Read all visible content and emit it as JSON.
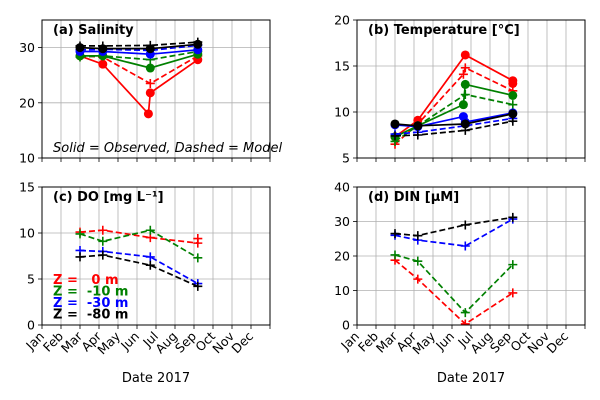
{
  "chart_data": [
    {
      "type": "line",
      "title": "(a) Salinity",
      "xlabel": "",
      "ylabel": "",
      "ylim": [
        10,
        35
      ],
      "yticks": [
        10,
        20,
        30
      ],
      "xlim": [
        0,
        12
      ],
      "grid": true,
      "annotation": "Solid = Observed, Dashed = Model",
      "series": [
        {
          "name": "0 m observed",
          "color": "#ff0000",
          "style": "solid",
          "marker": "circle",
          "x": [
            2.0,
            3.2,
            5.6,
            5.7,
            8.2
          ],
          "y": [
            28.5,
            27.0,
            18.0,
            21.8,
            27.8
          ]
        },
        {
          "name": "0 m model",
          "color": "#ff0000",
          "style": "dashed",
          "marker": "plus",
          "x": [
            2.0,
            3.2,
            5.7,
            8.2
          ],
          "y": [
            28.5,
            28.3,
            23.5,
            28.5
          ]
        },
        {
          "name": "-10 m observed",
          "color": "#008000",
          "style": "solid",
          "marker": "circle",
          "x": [
            2.0,
            3.2,
            5.7,
            8.2
          ],
          "y": [
            28.5,
            28.5,
            26.3,
            28.8
          ]
        },
        {
          "name": "-10 m model",
          "color": "#008000",
          "style": "dashed",
          "marker": "plus",
          "x": [
            2.0,
            3.2,
            5.7,
            8.2
          ],
          "y": [
            28.3,
            28.5,
            27.8,
            29.3
          ]
        },
        {
          "name": "-30 m observed",
          "color": "#0000ff",
          "style": "solid",
          "marker": "circle",
          "x": [
            2.0,
            3.2,
            5.7,
            8.2
          ],
          "y": [
            29.3,
            29.3,
            28.8,
            29.6
          ]
        },
        {
          "name": "-30 m model",
          "color": "#0000ff",
          "style": "dashed",
          "marker": "plus",
          "x": [
            2.0,
            3.2,
            5.7,
            8.2
          ],
          "y": [
            29.6,
            29.7,
            29.5,
            30.4
          ]
        },
        {
          "name": "-80 m observed",
          "color": "#000000",
          "style": "solid",
          "marker": "circle",
          "x": [
            2.0,
            3.2,
            5.7,
            8.2
          ],
          "y": [
            30.0,
            29.8,
            29.8,
            30.6
          ]
        },
        {
          "name": "-80 m model",
          "color": "#000000",
          "style": "dashed",
          "marker": "plus",
          "x": [
            2.0,
            3.2,
            5.7,
            8.2
          ],
          "y": [
            30.3,
            30.3,
            30.4,
            31.0
          ]
        }
      ]
    },
    {
      "type": "line",
      "title": "(b) Temperature [°C]",
      "xlabel": "",
      "ylabel": "",
      "ylim": [
        5,
        20
      ],
      "yticks": [
        5,
        10,
        15,
        20
      ],
      "xlim": [
        0,
        12
      ],
      "grid": true,
      "series": [
        {
          "name": "0 m observed",
          "color": "#ff0000",
          "style": "solid",
          "marker": "circle",
          "x": [
            2.0,
            3.2,
            5.7,
            8.2,
            8.2
          ],
          "y": [
            7.3,
            9.1,
            16.2,
            13.4,
            13.1
          ]
        },
        {
          "name": "0 m model",
          "color": "#ff0000",
          "style": "dashed",
          "marker": "plus",
          "x": [
            2.0,
            3.2,
            5.6,
            5.7,
            8.2
          ],
          "y": [
            6.5,
            8.7,
            14.1,
            14.8,
            12.3
          ]
        },
        {
          "name": "-10 m observed",
          "color": "#008000",
          "style": "solid",
          "marker": "circle",
          "x": [
            2.0,
            3.2,
            5.6,
            5.7,
            8.2
          ],
          "y": [
            7.3,
            8.5,
            10.8,
            13.0,
            11.8
          ]
        },
        {
          "name": "-10 m model",
          "color": "#008000",
          "style": "dashed",
          "marker": "plus",
          "x": [
            2.0,
            3.2,
            5.7,
            8.2
          ],
          "y": [
            6.8,
            8.5,
            11.9,
            10.8
          ]
        },
        {
          "name": "-30 m observed",
          "color": "#0000ff",
          "style": "solid",
          "marker": "circle",
          "x": [
            2.0,
            3.2,
            5.6,
            5.7,
            8.2
          ],
          "y": [
            8.6,
            8.4,
            9.5,
            8.9,
            9.9
          ]
        },
        {
          "name": "-30 m model",
          "color": "#0000ff",
          "style": "dashed",
          "marker": "plus",
          "x": [
            2.0,
            3.2,
            5.7,
            8.2
          ],
          "y": [
            7.6,
            7.8,
            8.5,
            9.3
          ]
        },
        {
          "name": "-80 m observed",
          "color": "#000000",
          "style": "solid",
          "marker": "circle",
          "x": [
            2.0,
            3.2,
            5.7,
            8.2
          ],
          "y": [
            8.7,
            8.5,
            8.7,
            9.8
          ]
        },
        {
          "name": "-80 m model",
          "color": "#000000",
          "style": "dashed",
          "marker": "plus",
          "x": [
            2.0,
            3.2,
            5.7,
            8.2
          ],
          "y": [
            7.4,
            7.5,
            8.0,
            9.0
          ]
        }
      ]
    },
    {
      "type": "line",
      "title": "(c) DO [mg L⁻¹]",
      "xlabel": "Date 2017",
      "ylabel": "",
      "ylim": [
        0,
        15
      ],
      "yticks": [
        0,
        5,
        10,
        15
      ],
      "xlim": [
        0,
        12
      ],
      "xticks": [
        "Jan",
        "Feb",
        "Mar",
        "Apr",
        "May",
        "Jun",
        "Jul",
        "Aug",
        "Sep",
        "Oct",
        "Nov",
        "Dec"
      ],
      "grid": true,
      "legend": {
        "placement": "bottom-left",
        "entries": [
          {
            "label": "Z =   0 m",
            "color": "#ff0000"
          },
          {
            "label": "Z =  -10 m",
            "color": "#008000"
          },
          {
            "label": "Z =  -30 m",
            "color": "#0000ff"
          },
          {
            "label": "Z =  -80 m",
            "color": "#000000"
          }
        ]
      },
      "series": [
        {
          "name": "0 m model",
          "color": "#ff0000",
          "style": "dashed",
          "marker": "plus",
          "x": [
            2.0,
            3.2,
            5.7,
            8.2,
            8.2
          ],
          "y": [
            10.1,
            10.3,
            9.5,
            8.9,
            9.4
          ]
        },
        {
          "name": "-10 m model",
          "color": "#008000",
          "style": "dashed",
          "marker": "plus",
          "x": [
            2.0,
            3.2,
            5.7,
            8.2
          ],
          "y": [
            9.9,
            9.1,
            10.3,
            7.3
          ]
        },
        {
          "name": "-30 m model",
          "color": "#0000ff",
          "style": "dashed",
          "marker": "plus",
          "x": [
            2.0,
            3.2,
            5.7,
            8.2
          ],
          "y": [
            8.1,
            8.0,
            7.4,
            4.5
          ]
        },
        {
          "name": "-80 m model",
          "color": "#000000",
          "style": "dashed",
          "marker": "plus",
          "x": [
            2.0,
            3.2,
            5.7,
            8.2
          ],
          "y": [
            7.4,
            7.6,
            6.5,
            4.2
          ]
        }
      ]
    },
    {
      "type": "line",
      "title": "(d) DIN  [μM]",
      "xlabel": "Date 2017",
      "ylabel": "",
      "ylim": [
        0,
        40
      ],
      "yticks": [
        0,
        10,
        20,
        30,
        40
      ],
      "xlim": [
        0,
        12
      ],
      "xticks": [
        "Jan",
        "Feb",
        "Mar",
        "Apr",
        "May",
        "Jun",
        "Jul",
        "Aug",
        "Sep",
        "Oct",
        "Nov",
        "Dec"
      ],
      "grid": true,
      "series": [
        {
          "name": "0 m model",
          "color": "#ff0000",
          "style": "dashed",
          "marker": "plus",
          "x": [
            2.0,
            3.2,
            5.7,
            8.2
          ],
          "y": [
            18.8,
            13.3,
            0.3,
            9.3
          ]
        },
        {
          "name": "-10 m model",
          "color": "#008000",
          "style": "dashed",
          "marker": "plus",
          "x": [
            2.0,
            3.2,
            5.7,
            8.2
          ],
          "y": [
            20.3,
            18.5,
            3.6,
            17.5
          ]
        },
        {
          "name": "-30 m model",
          "color": "#0000ff",
          "style": "dashed",
          "marker": "plus",
          "x": [
            2.0,
            3.2,
            5.7,
            8.2
          ],
          "y": [
            26.0,
            24.6,
            22.9,
            30.7
          ]
        },
        {
          "name": "-80 m model",
          "color": "#000000",
          "style": "dashed",
          "marker": "plus",
          "x": [
            2.0,
            3.2,
            5.7,
            8.2
          ],
          "y": [
            26.5,
            25.9,
            29.0,
            31.2
          ]
        }
      ]
    }
  ]
}
